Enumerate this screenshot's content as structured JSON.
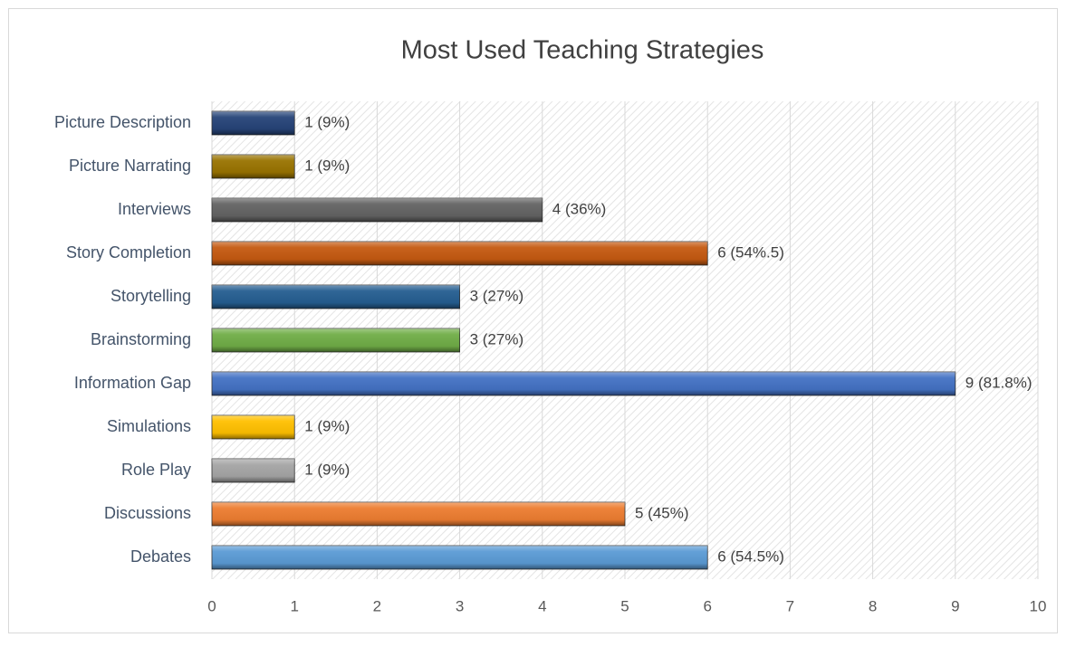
{
  "chart_data": {
    "type": "bar",
    "orientation": "horizontal",
    "title": "Most Used Teaching Strategies",
    "categories": [
      "Picture Description",
      "Picture Narrating",
      "Interviews",
      "Story Completion",
      "Storytelling",
      "Brainstorming",
      "Information Gap",
      "Simulations",
      "Role Play",
      "Discussions",
      "Debates"
    ],
    "values": [
      1,
      1,
      4,
      6,
      3,
      3,
      9,
      1,
      1,
      5,
      6
    ],
    "value_labels": [
      "1 (9%)",
      "1 (9%)",
      "4 (36%)",
      "6 (54%.5)",
      "3 (27%)",
      "3 (27%)",
      "9 (81.8%)",
      "1 (9%)",
      "1 (9%)",
      "5 (45%)",
      "6 (54.5%)"
    ],
    "colors": [
      "#264478",
      "#997300",
      "#636363",
      "#c55a11",
      "#255e91",
      "#70ad47",
      "#4472c4",
      "#ffc000",
      "#a5a5a5",
      "#ed7d31",
      "#5b9bd5"
    ],
    "xlim": [
      0,
      10
    ],
    "xticks": [
      0,
      1,
      2,
      3,
      4,
      5,
      6,
      7,
      8,
      9,
      10
    ],
    "grid": true
  }
}
